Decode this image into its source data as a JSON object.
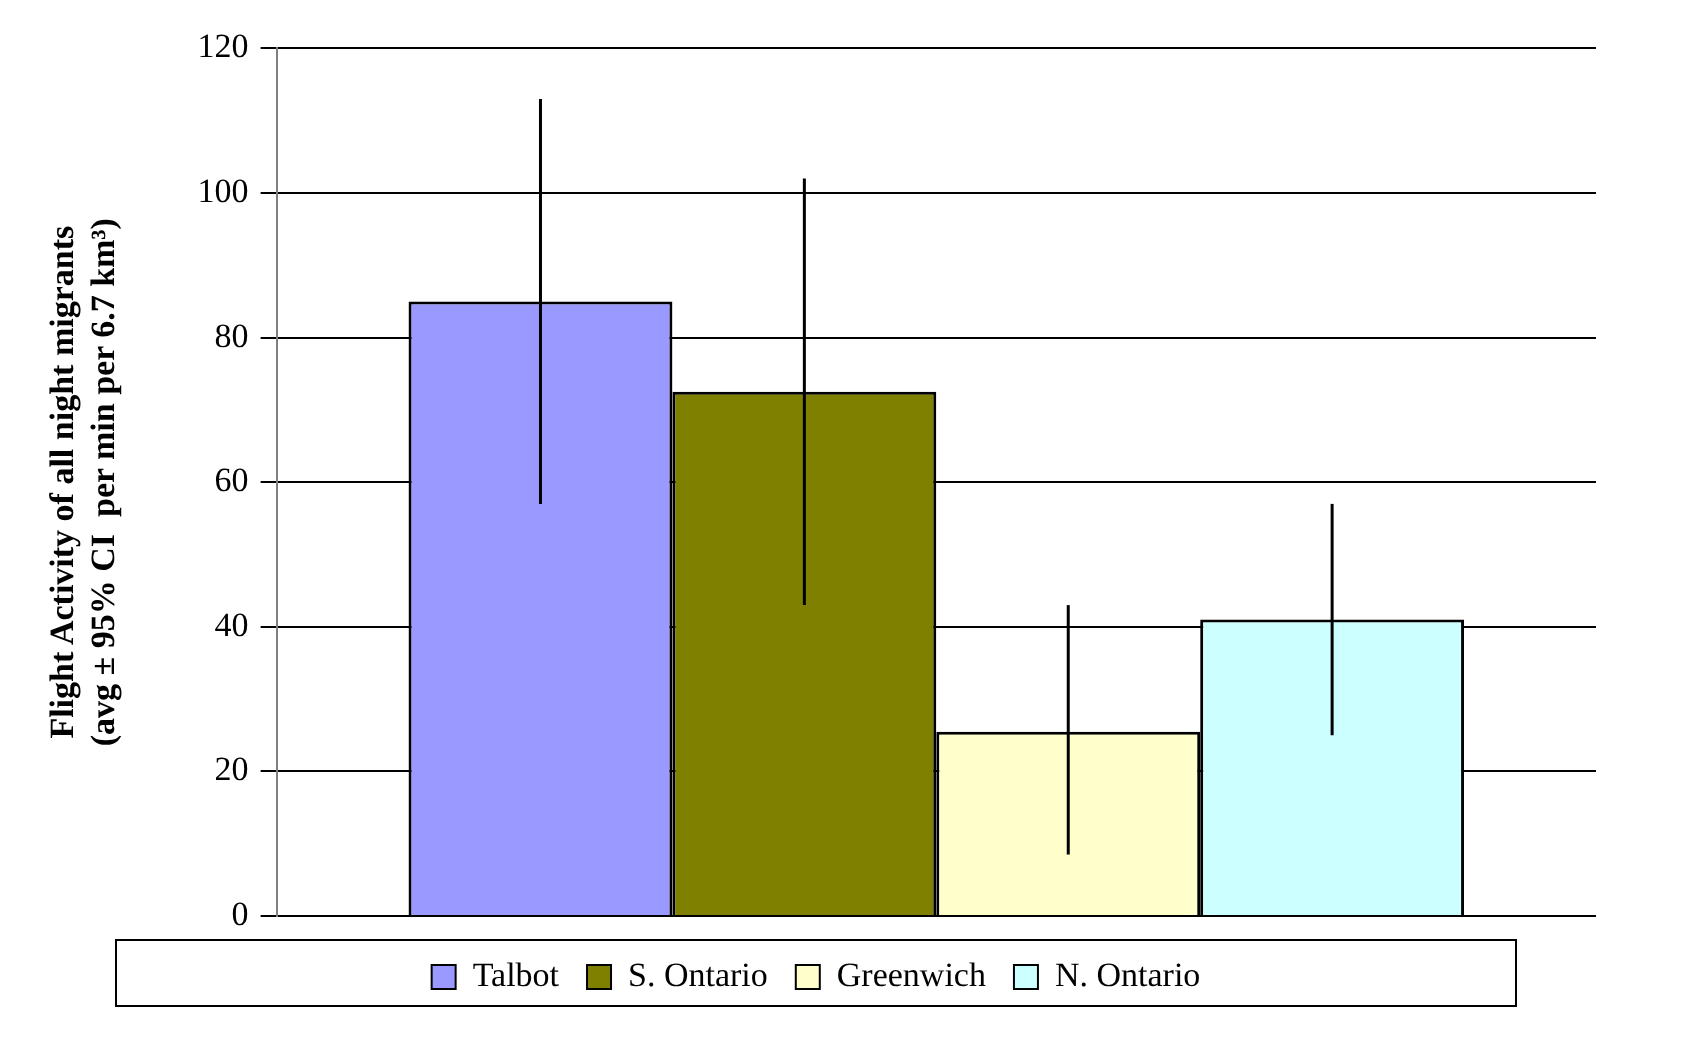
{
  "chart_data": {
    "type": "bar",
    "ylabel": "Flight Activity of all night migrants\n(avg ± 95% CI  per min per 6.7 km³)",
    "categories": [
      null
    ],
    "series": [
      {
        "name": "Talbot",
        "color": "#9999ff",
        "values": [
          85
        ],
        "errors": [
          [
            57,
            113
          ]
        ]
      },
      {
        "name": "S. Ontario",
        "color": "#808000",
        "values": [
          72.5
        ],
        "errors": [
          [
            43,
            102
          ]
        ]
      },
      {
        "name": "Greenwich",
        "color": "#ffffcc",
        "values": [
          25.5
        ],
        "errors": [
          [
            8.5,
            43
          ]
        ]
      },
      {
        "name": "N. Ontario",
        "color": "#ccffff",
        "values": [
          41
        ],
        "errors": [
          [
            25,
            57
          ]
        ]
      }
    ],
    "ylim": [
      0,
      120
    ],
    "yticks": [
      0,
      20,
      40,
      60,
      80,
      100,
      120
    ],
    "grid": "y",
    "legend": "bottom"
  }
}
